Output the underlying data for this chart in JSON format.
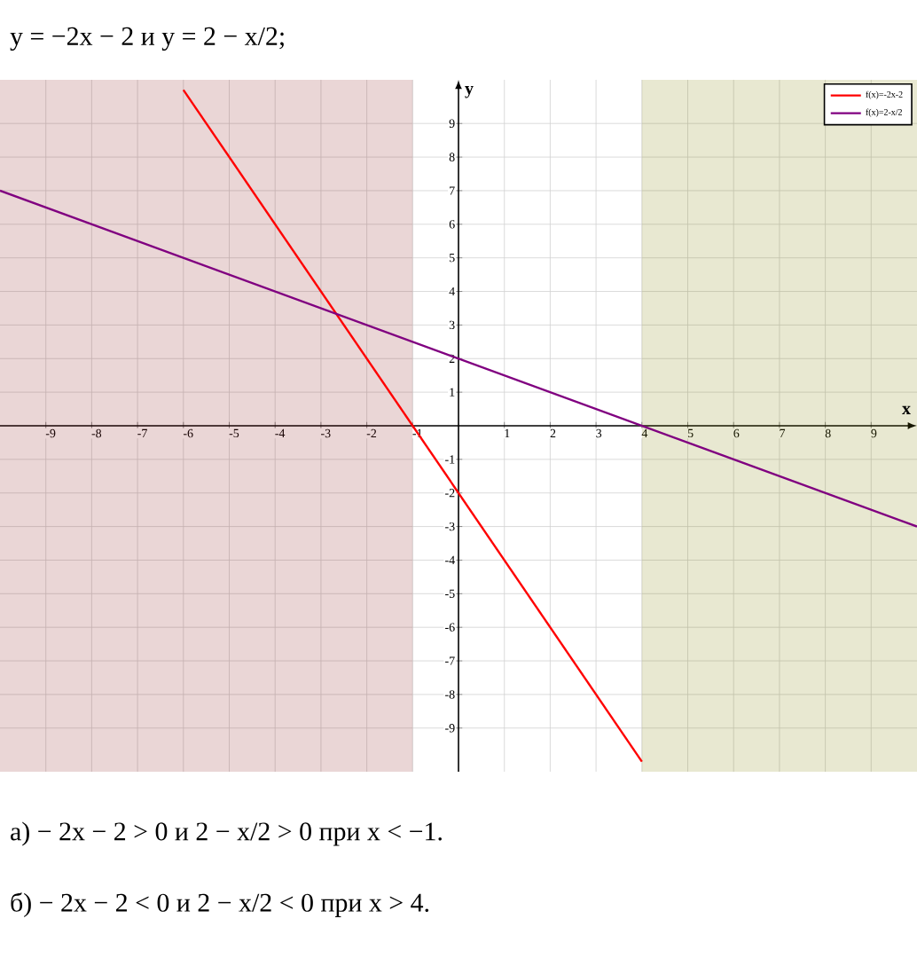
{
  "chart_data": {
    "type": "line",
    "title": "y = −2x − 2  и  y = 2 − x/2;",
    "xlabel": "x",
    "ylabel": "y",
    "xlim": [
      -10,
      10
    ],
    "ylim": [
      -10.3,
      10.3
    ],
    "xticks": [
      -9,
      -8,
      -7,
      -6,
      -5,
      -4,
      -3,
      -2,
      -1,
      1,
      2,
      3,
      4,
      5,
      6,
      7,
      8,
      9
    ],
    "yticks": [
      -9,
      -8,
      -7,
      -6,
      -5,
      -4,
      -3,
      -2,
      -1,
      1,
      2,
      3,
      4,
      5,
      6,
      7,
      8,
      9
    ],
    "grid": true,
    "legend": "top right",
    "marker": "none",
    "line_style": "solid",
    "series": [
      {
        "name": "f(x)=-2x-2",
        "color": "#ff0000",
        "x": [
          -6,
          4
        ],
        "values": [
          10,
          -10
        ]
      },
      {
        "name": "f(x)=2-x/2",
        "color": "#800080",
        "x": [
          -10,
          10
        ],
        "values": [
          7,
          -3
        ]
      }
    ],
    "bands": [
      {
        "axis": "x",
        "from": -10,
        "to": -1,
        "color": "#8b1a1a"
      },
      {
        "axis": "x",
        "from": 4,
        "to": 10,
        "color": "#808000"
      }
    ],
    "annotations": [
      "а) − 2x − 2 > 0 и 2 − x/2 > 0 при x < −1.",
      "б) − 2x − 2 < 0 и 2 − x/2 < 0  при x > 4."
    ]
  }
}
